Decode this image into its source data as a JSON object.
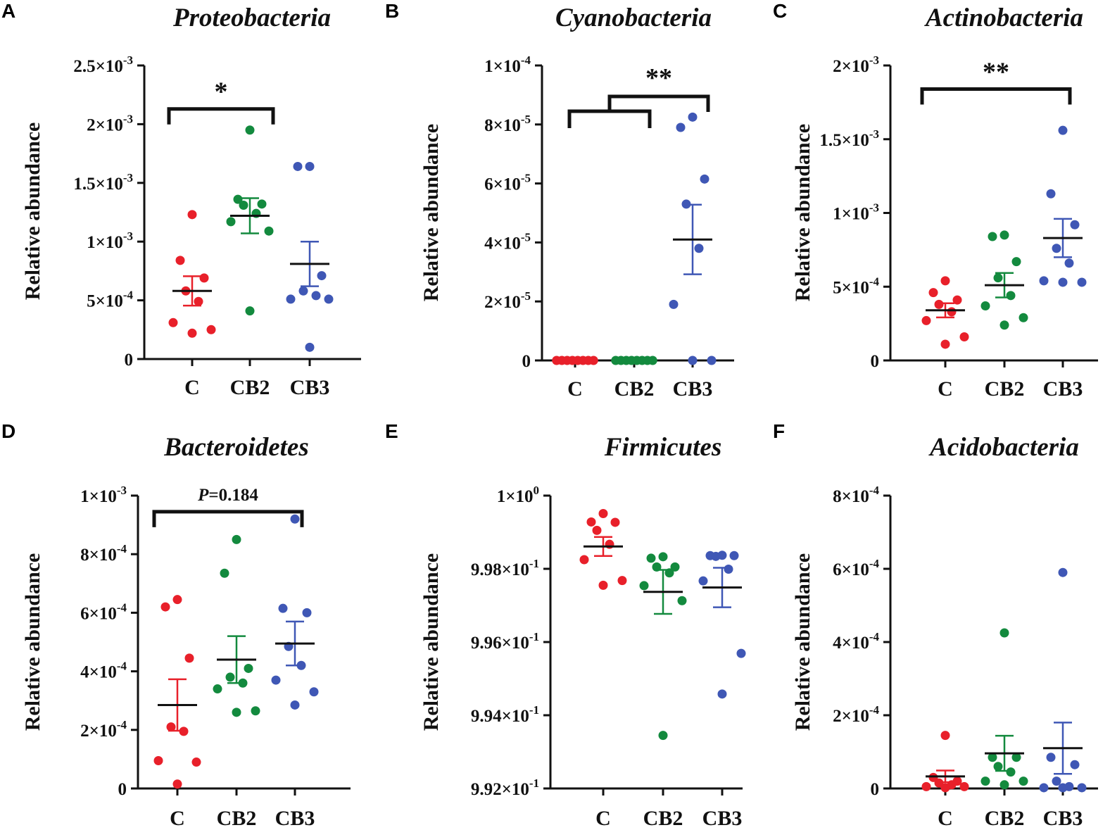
{
  "colors": {
    "C": "#e8202a",
    "CB2": "#138a3e",
    "CB3": "#3f57b5",
    "axis": "#111111"
  },
  "chart_data": [
    {
      "panel": "A",
      "type": "scatter",
      "title": "Proteobacteria",
      "ylabel": "Relative abundance",
      "categories": [
        "C",
        "CB2",
        "CB3"
      ],
      "ylim": [
        0,
        0.0025
      ],
      "yticks": [
        0,
        0.0005,
        0.001,
        0.0015,
        0.002,
        0.0025
      ],
      "ytick_labels": [
        {
          "m": "0",
          "e": ""
        },
        {
          "m": "5×10",
          "e": "-4"
        },
        {
          "m": "1×10",
          "e": "-3"
        },
        {
          "m": "1.5×10",
          "e": "-3"
        },
        {
          "m": "2×10",
          "e": "-3"
        },
        {
          "m": "2.5×10",
          "e": "-3"
        }
      ],
      "series": [
        {
          "name": "C",
          "points": [
            0.00123,
            0.00084,
            0.00069,
            0.00058,
            0.00049,
            0.00031,
            0.00025,
            0.00022
          ],
          "mean": 0.00058,
          "sem": 0.000125
        },
        {
          "name": "CB2",
          "points": [
            0.00195,
            0.00136,
            0.00132,
            0.00131,
            0.00124,
            0.00117,
            0.00109,
            0.00041
          ],
          "mean": 0.00122,
          "sem": 0.00015
        },
        {
          "name": "CB3",
          "points": [
            0.00164,
            0.00164,
            0.00071,
            0.00058,
            0.00054,
            0.00051,
            0.00051,
            0.0001
          ],
          "mean": 0.00081,
          "sem": 0.00019
        }
      ],
      "brackets": [
        {
          "from": 0,
          "to": 1,
          "y": 0.00213,
          "label": "*",
          "italic_prefix": ""
        }
      ]
    },
    {
      "panel": "B",
      "type": "scatter",
      "title": "Cyanobacteria",
      "ylabel": "Relative abundance",
      "categories": [
        "C",
        "CB2",
        "CB3"
      ],
      "ylim": [
        0,
        0.0001
      ],
      "yticks": [
        0,
        2e-05,
        4e-05,
        6e-05,
        8e-05,
        0.0001
      ],
      "ytick_labels": [
        {
          "m": "0",
          "e": ""
        },
        {
          "m": "2×10",
          "e": "-5"
        },
        {
          "m": "4×10",
          "e": "-5"
        },
        {
          "m": "6×10",
          "e": "-5"
        },
        {
          "m": "8×10",
          "e": "-5"
        },
        {
          "m": "1×10",
          "e": "-4"
        }
      ],
      "series": [
        {
          "name": "C",
          "points": [
            0,
            0,
            0,
            0,
            0,
            0,
            0,
            0
          ],
          "mean": 0,
          "sem": 0
        },
        {
          "name": "CB2",
          "points": [
            0,
            0,
            0,
            0,
            0,
            0,
            0,
            0
          ],
          "mean": 0,
          "sem": 0
        },
        {
          "name": "CB3",
          "points": [
            8.25e-05,
            7.9e-05,
            6.15e-05,
            5.3e-05,
            3.8e-05,
            1.9e-05,
            0,
            0
          ],
          "mean": 4.1e-05,
          "sem": 1.18e-05
        }
      ],
      "nested_bracket": {
        "lower_y": 8.45e-05,
        "upper_y": 8.95e-05,
        "label": "**"
      }
    },
    {
      "panel": "C",
      "type": "scatter",
      "title": "Actinobacteria",
      "ylabel": "Relative abundance",
      "categories": [
        "C",
        "CB2",
        "CB3"
      ],
      "ylim": [
        0,
        0.002
      ],
      "yticks": [
        0,
        0.0005,
        0.001,
        0.0015,
        0.002
      ],
      "ytick_labels": [
        {
          "m": "0",
          "e": ""
        },
        {
          "m": "5×10",
          "e": "-4"
        },
        {
          "m": "1×10",
          "e": "-3"
        },
        {
          "m": "1.5×10",
          "e": "-3"
        },
        {
          "m": "2×10",
          "e": "-3"
        }
      ],
      "series": [
        {
          "name": "C",
          "points": [
            0.00054,
            0.00046,
            0.00041,
            0.00038,
            0.00033,
            0.00027,
            0.00016,
            0.00011
          ],
          "mean": 0.00034,
          "sem": 4.8e-05
        },
        {
          "name": "CB2",
          "points": [
            0.00085,
            0.00084,
            0.00067,
            0.00056,
            0.00044,
            0.00037,
            0.00029,
            0.00024
          ],
          "mean": 0.00051,
          "sem": 8.3e-05
        },
        {
          "name": "CB3",
          "points": [
            0.00156,
            0.00113,
            0.00092,
            0.00076,
            0.00066,
            0.00054,
            0.00053,
            0.00053
          ],
          "mean": 0.00083,
          "sem": 0.00013
        }
      ],
      "brackets": [
        {
          "from": 0,
          "to": 2,
          "y": 0.00184,
          "label": "**",
          "italic_prefix": ""
        }
      ]
    },
    {
      "panel": "D",
      "type": "scatter",
      "title": "Bacteroidetes",
      "ylabel": "Relative abundance",
      "categories": [
        "C",
        "CB2",
        "CB3"
      ],
      "ylim": [
        0,
        0.001
      ],
      "yticks": [
        0,
        0.0002,
        0.0004,
        0.0006,
        0.0008,
        0.001
      ],
      "ytick_labels": [
        {
          "m": "0",
          "e": ""
        },
        {
          "m": "2×10",
          "e": "-4"
        },
        {
          "m": "4×10",
          "e": "-4"
        },
        {
          "m": "6×10",
          "e": "-4"
        },
        {
          "m": "8×10",
          "e": "-4"
        },
        {
          "m": "1×10",
          "e": "-3"
        }
      ],
      "series": [
        {
          "name": "C",
          "points": [
            0.000645,
            0.00062,
            0.000445,
            0.00021,
            0.000195,
            9.5e-05,
            9e-05,
            1.5e-05
          ],
          "mean": 0.000285,
          "sem": 8.8e-05
        },
        {
          "name": "CB2",
          "points": [
            0.00085,
            0.000735,
            0.00041,
            0.00038,
            0.00036,
            0.00034,
            0.000265,
            0.00026
          ],
          "mean": 0.00044,
          "sem": 8e-05
        },
        {
          "name": "CB3",
          "points": [
            0.00092,
            0.000615,
            0.0006,
            0.000485,
            0.00042,
            0.00037,
            0.00033,
            0.000285
          ],
          "mean": 0.000495,
          "sem": 7.5e-05
        }
      ],
      "brackets": [
        {
          "from": 0,
          "to": 2,
          "y": 0.000945,
          "label": "=0.184",
          "italic_prefix": "P"
        }
      ]
    },
    {
      "panel": "E",
      "type": "scatter",
      "title": "Firmicutes",
      "ylabel": "Relative abundance",
      "categories": [
        "C",
        "CB2",
        "CB3"
      ],
      "ylim": [
        0.992,
        1.0
      ],
      "yticks": [
        0.992,
        0.994,
        0.996,
        0.998,
        1.0
      ],
      "ytick_labels": [
        {
          "m": "9.92×10",
          "e": "-1"
        },
        {
          "m": "9.94×10",
          "e": "-1"
        },
        {
          "m": "9.96×10",
          "e": "-1"
        },
        {
          "m": "9.98×10",
          "e": "-1"
        },
        {
          "m": "1×10",
          "e": "0"
        }
      ],
      "series": [
        {
          "name": "C",
          "points": [
            0.99951,
            0.99928,
            0.99927,
            0.99905,
            0.99867,
            0.99825,
            0.99768,
            0.99755
          ],
          "mean": 0.99861,
          "sem": 0.00026
        },
        {
          "name": "CB2",
          "points": [
            0.99833,
            0.99829,
            0.99805,
            0.99805,
            0.99789,
            0.99754,
            0.99713,
            0.99345
          ],
          "mean": 0.99737,
          "sem": 0.0006
        },
        {
          "name": "CB3",
          "points": [
            0.99837,
            0.99836,
            0.99836,
            0.99834,
            0.99799,
            0.99767,
            0.99569,
            0.99458
          ],
          "mean": 0.99749,
          "sem": 0.00054
        }
      ]
    },
    {
      "panel": "F",
      "type": "scatter",
      "title": "Acidobacteria",
      "ylabel": "Relative abundance",
      "categories": [
        "C",
        "CB2",
        "CB3"
      ],
      "ylim": [
        0,
        0.0008
      ],
      "yticks": [
        0,
        0.0002,
        0.0004,
        0.0006,
        0.0008
      ],
      "ytick_labels": [
        {
          "m": "0",
          "e": ""
        },
        {
          "m": "2×10",
          "e": "-4"
        },
        {
          "m": "4×10",
          "e": "-4"
        },
        {
          "m": "6×10",
          "e": "-4"
        },
        {
          "m": "8×10",
          "e": "-4"
        }
      ],
      "series": [
        {
          "name": "C",
          "points": [
            0.000145,
            3e-05,
            2e-05,
            1.5e-05,
            1e-05,
            5e-06,
            5e-06,
            2e-06
          ],
          "mean": 3.3e-05,
          "sem": 1.6e-05
        },
        {
          "name": "CB2",
          "points": [
            0.000425,
            8.5e-05,
            8.5e-05,
            6e-05,
            4.5e-05,
            2e-05,
            2e-05,
            1e-05
          ],
          "mean": 9.6e-05,
          "sem": 4.8e-05
        },
        {
          "name": "CB3",
          "points": [
            0.00059,
            8.5e-05,
            6.5e-05,
            2e-05,
            5e-06,
            2e-06,
            2e-06,
            2e-06
          ],
          "mean": 0.00011,
          "sem": 7e-05
        }
      ]
    }
  ]
}
